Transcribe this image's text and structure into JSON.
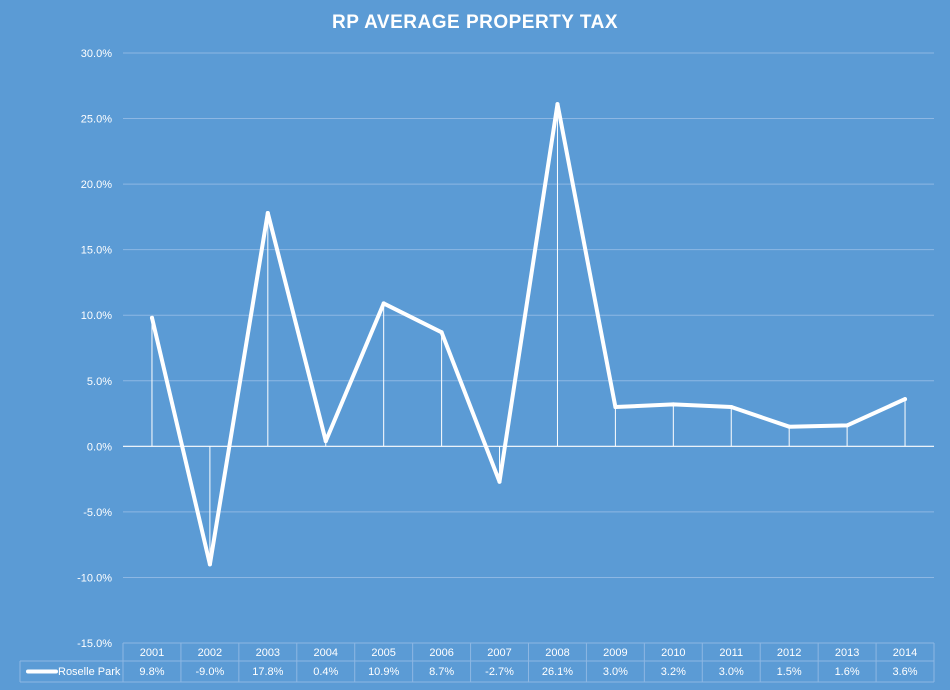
{
  "chart_data": {
    "type": "line",
    "title": "RP AVERAGE PROPERTY TAX",
    "categories": [
      "2001",
      "2002",
      "2003",
      "2004",
      "2005",
      "2006",
      "2007",
      "2008",
      "2009",
      "2010",
      "2011",
      "2012",
      "2013",
      "2014"
    ],
    "series": [
      {
        "name": "Roselle Park",
        "values": [
          9.8,
          -9.0,
          17.8,
          0.4,
          10.9,
          8.7,
          -2.7,
          26.1,
          3.0,
          3.2,
          3.0,
          1.5,
          1.6,
          3.6
        ],
        "value_labels": [
          "9.8%",
          "-9.0%",
          "17.8%",
          "0.4%",
          "10.9%",
          "8.7%",
          "-2.7%",
          "26.1%",
          "3.0%",
          "3.2%",
          "3.0%",
          "1.5%",
          "1.6%",
          "3.6%"
        ]
      }
    ],
    "ylim": [
      -15,
      30
    ],
    "y_ticks": [
      30,
      25,
      20,
      15,
      10,
      5,
      0,
      -5,
      -10,
      -15
    ],
    "y_tick_labels": [
      "30.0%",
      "25.0%",
      "20.0%",
      "15.0%",
      "10.0%",
      "5.0%",
      "0.0%",
      "-5.0%",
      "-10.0%",
      "-15.0%"
    ],
    "xlabel": "",
    "ylabel": "",
    "grid": true,
    "drop_lines": true,
    "data_table": true,
    "colors": {
      "background": "#5b9bd5",
      "line": "#ffffff",
      "grid": "#8db7e3"
    }
  }
}
